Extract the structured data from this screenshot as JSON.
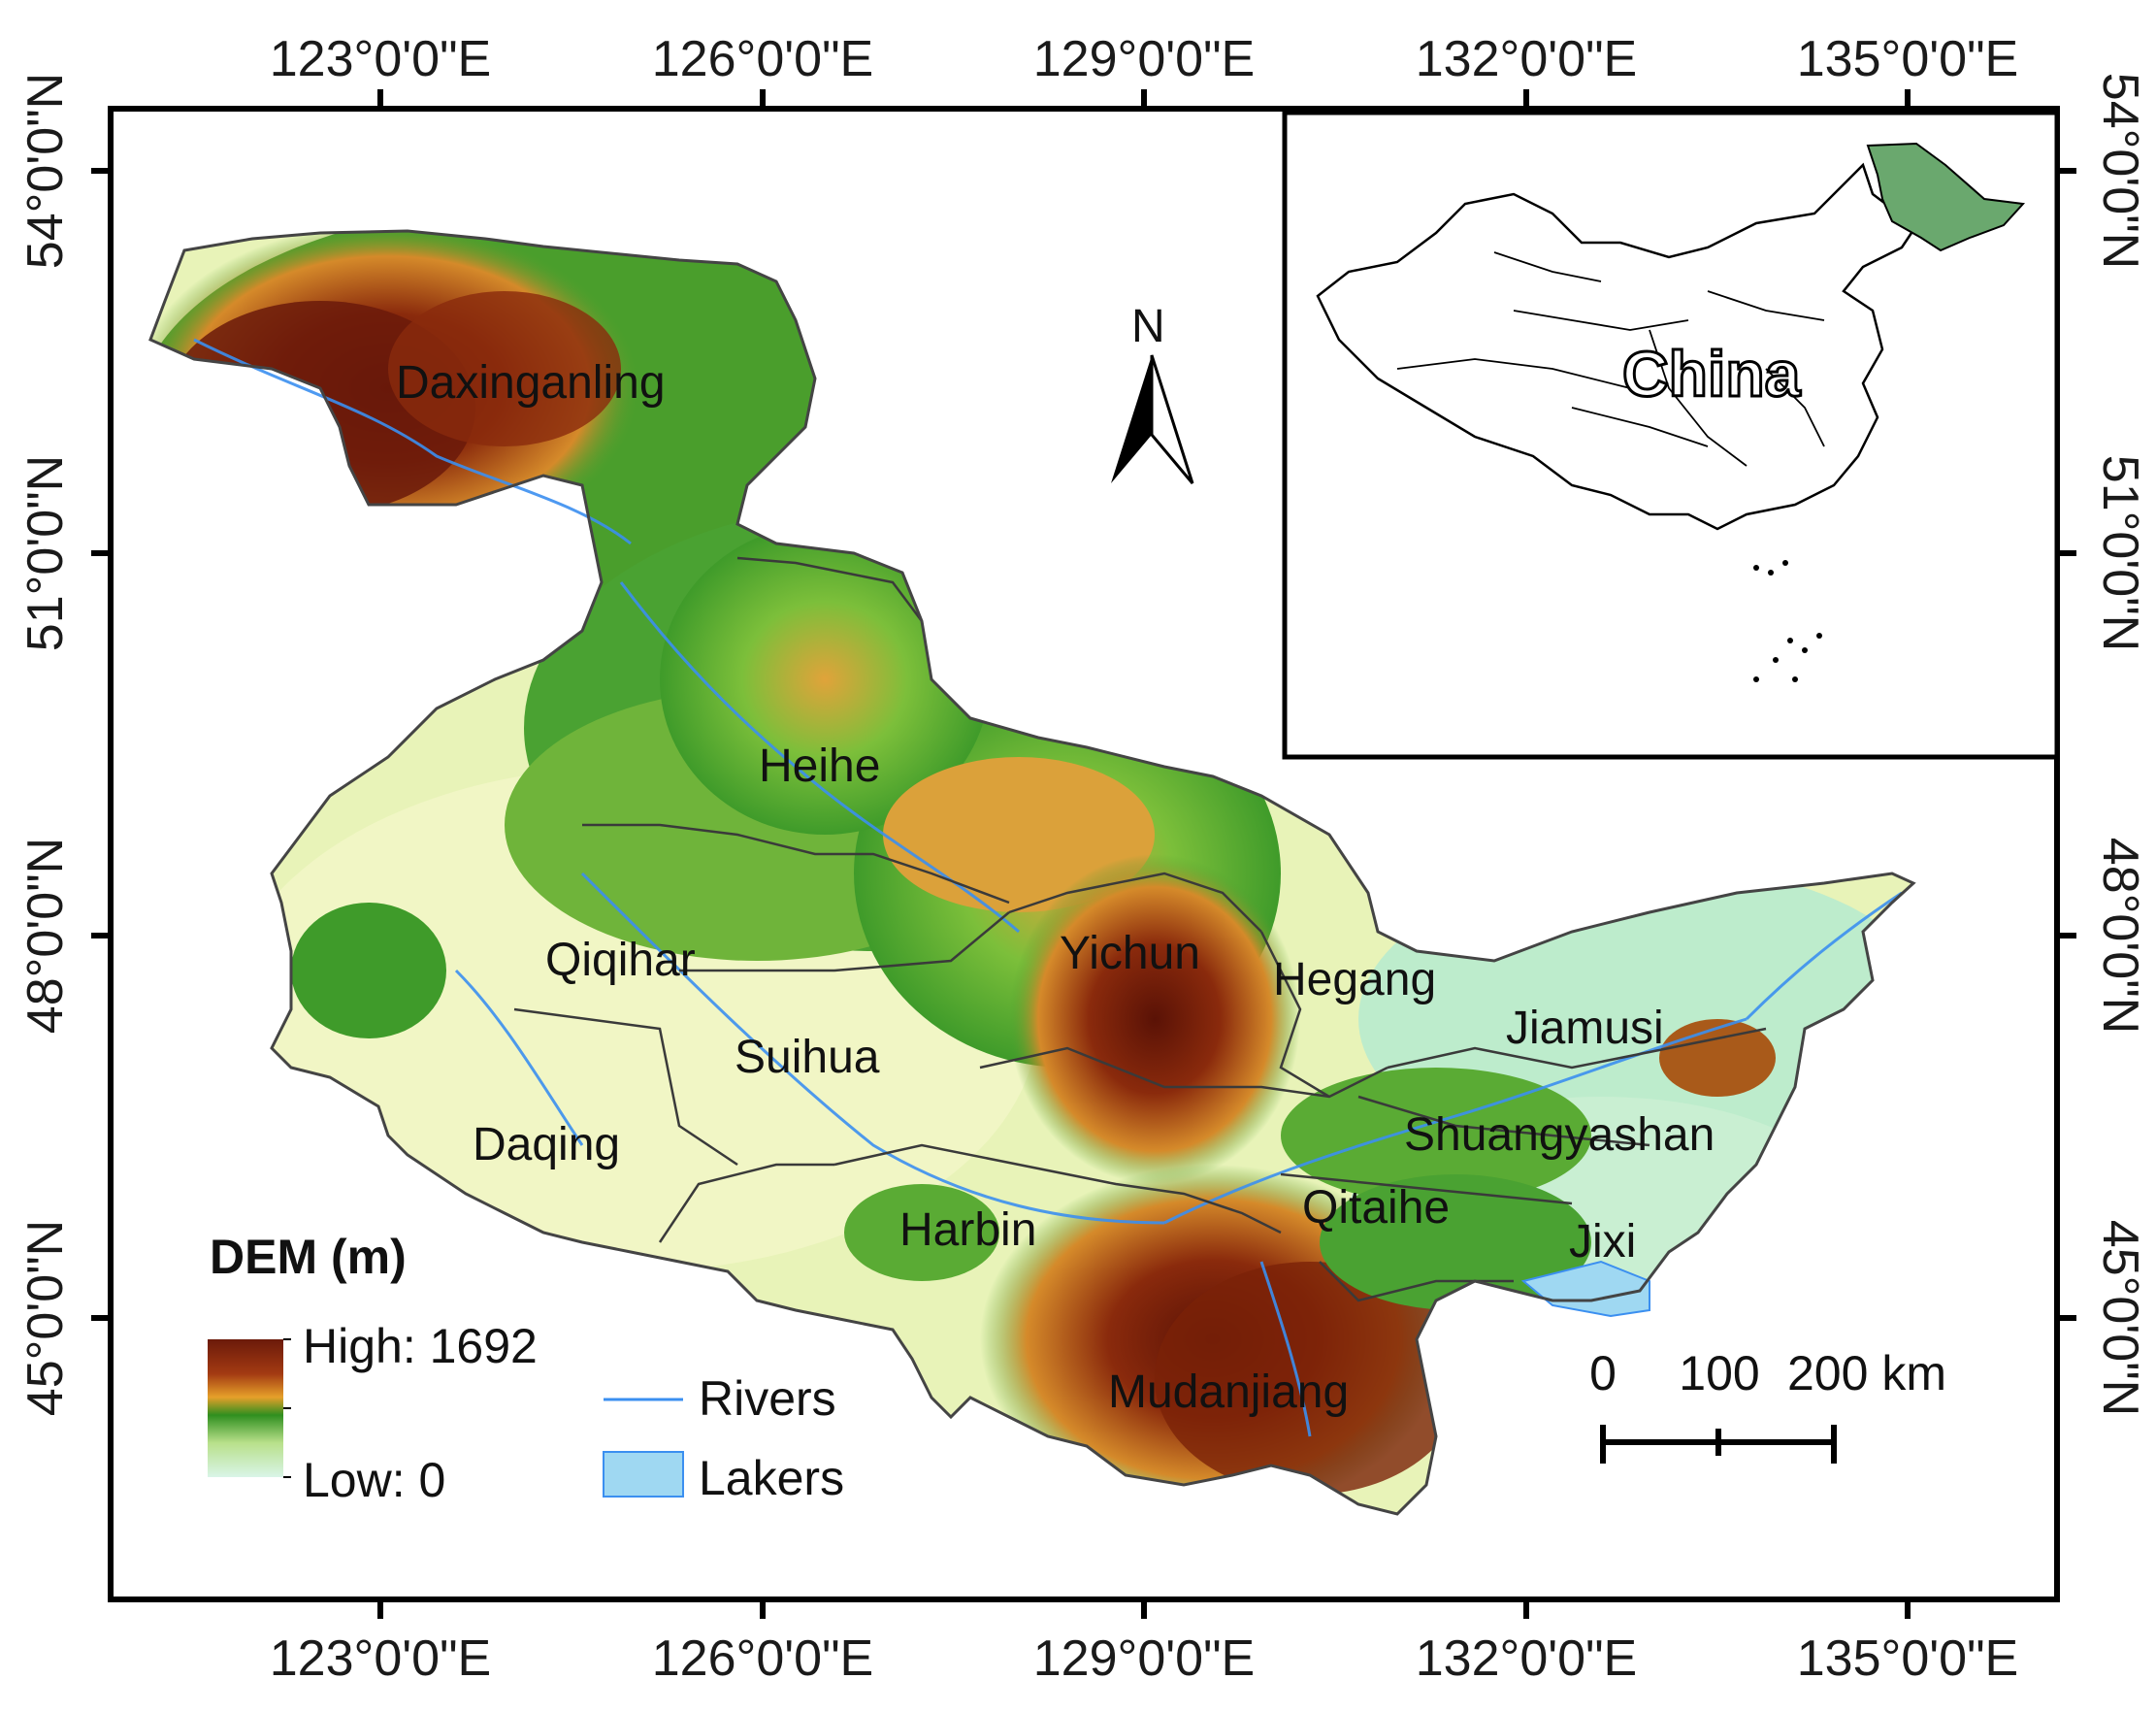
{
  "axes": {
    "top_longitudes": [
      "123°0'0\"E",
      "126°0'0\"E",
      "129°0'0\"E",
      "132°0'0\"E",
      "135°0'0\"E"
    ],
    "bottom_longitudes": [
      "123°0'0\"E",
      "126°0'0\"E",
      "129°0'0\"E",
      "132°0'0\"E",
      "135°0'0\"E"
    ],
    "left_latitudes": [
      "54°0'0\"N",
      "51°0'0\"N",
      "48°0'0\"N",
      "45°0'0\"N"
    ],
    "right_latitudes": [
      "54°0'0\"N",
      "51°0'0\"N",
      "48°0'0\"N",
      "45°0'0\"N"
    ]
  },
  "regions": [
    {
      "name": "Daxinganling"
    },
    {
      "name": "Heihe"
    },
    {
      "name": "Qiqihar"
    },
    {
      "name": "Yichun"
    },
    {
      "name": "Hegang"
    },
    {
      "name": "Jiamusi"
    },
    {
      "name": "Suihua"
    },
    {
      "name": "Daqing"
    },
    {
      "name": "Shuangyashan"
    },
    {
      "name": "Qitaihe"
    },
    {
      "name": "Harbin"
    },
    {
      "name": "Jixi"
    },
    {
      "name": "Mudanjiang"
    }
  ],
  "north_arrow": {
    "label": "N"
  },
  "inset": {
    "label": "China",
    "highlight_color": "#6aa86e"
  },
  "legend": {
    "title": "DEM (m)",
    "high_label": "High: 1692",
    "low_label": "Low: 0",
    "rivers_label": "Rivers",
    "lakes_label": "Lakers",
    "river_color": "#3b8ff0",
    "lake_color": "#9fd8f2"
  },
  "scale_bar": {
    "labels": [
      "0",
      "100",
      "200 km"
    ]
  },
  "colors": {
    "dem_high": "#6b1a0a",
    "dem_mid_orange": "#e6a02a",
    "dem_mid_green": "#2f8f1f",
    "dem_low": "#d9f5e8"
  }
}
